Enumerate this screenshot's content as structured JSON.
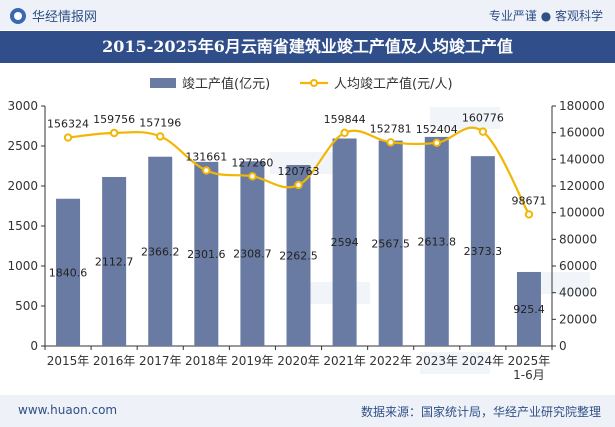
{
  "header": {
    "brand": "华经情报网",
    "tags": "专业严谨 ● 客观科学"
  },
  "footer": {
    "site": "www.huaon.com",
    "source": "数据来源：国家统计局，华经产业研究院整理"
  },
  "colors": {
    "bar": "#6a7ba3",
    "line": "#f2b705",
    "title_bg": "#2f4e8a",
    "header_bg": "#eef2f8"
  },
  "chart_data": {
    "type": "bar",
    "title": "2015-2025年6月云南省建筑业竣工产值及人均竣工产值",
    "categories": [
      "2015年",
      "2016年",
      "2017年",
      "2018年",
      "2019年",
      "2020年",
      "2021年",
      "2022年",
      "2023年",
      "2024年",
      "2025年 1-6月"
    ],
    "category_lines": [
      [
        "2015年"
      ],
      [
        "2016年"
      ],
      [
        "2017年"
      ],
      [
        "2018年"
      ],
      [
        "2019年"
      ],
      [
        "2020年"
      ],
      [
        "2021年"
      ],
      [
        "2022年"
      ],
      [
        "2023年"
      ],
      [
        "2024年"
      ],
      [
        "2025年",
        "1-6月"
      ]
    ],
    "series": [
      {
        "name": "竣工产值(亿元)",
        "type": "bar",
        "axis": "left",
        "values": [
          1840.6,
          2112.7,
          2366.2,
          2301.6,
          2308.7,
          2262.5,
          2594,
          2567.5,
          2613.8,
          2373.3,
          925.4
        ],
        "labels": [
          "1840.6",
          "2112.7",
          "2366.2",
          "2301.6",
          "2308.7",
          "2262.5",
          "2594",
          "2567.5",
          "2613.8",
          "2373.3",
          "925.4"
        ]
      },
      {
        "name": "人均竣工产值(元/人)",
        "type": "line",
        "axis": "right",
        "values": [
          156324,
          159756,
          157196,
          131661,
          127260,
          120763,
          159844,
          152781,
          152404,
          160776,
          98671
        ],
        "labels": [
          "156324",
          "159756",
          "157196",
          "131661",
          "127260",
          "120763",
          "159844",
          "152781",
          "152404",
          "160776",
          "98671"
        ]
      }
    ],
    "y_left": {
      "min": 0,
      "max": 3000,
      "ticks": [
        0,
        500,
        1000,
        1500,
        2000,
        2500,
        3000
      ]
    },
    "y_right": {
      "min": 0,
      "max": 180000,
      "ticks": [
        0,
        20000,
        40000,
        60000,
        80000,
        100000,
        120000,
        140000,
        160000,
        180000
      ]
    },
    "legend_position": "top-center",
    "grid": false
  }
}
